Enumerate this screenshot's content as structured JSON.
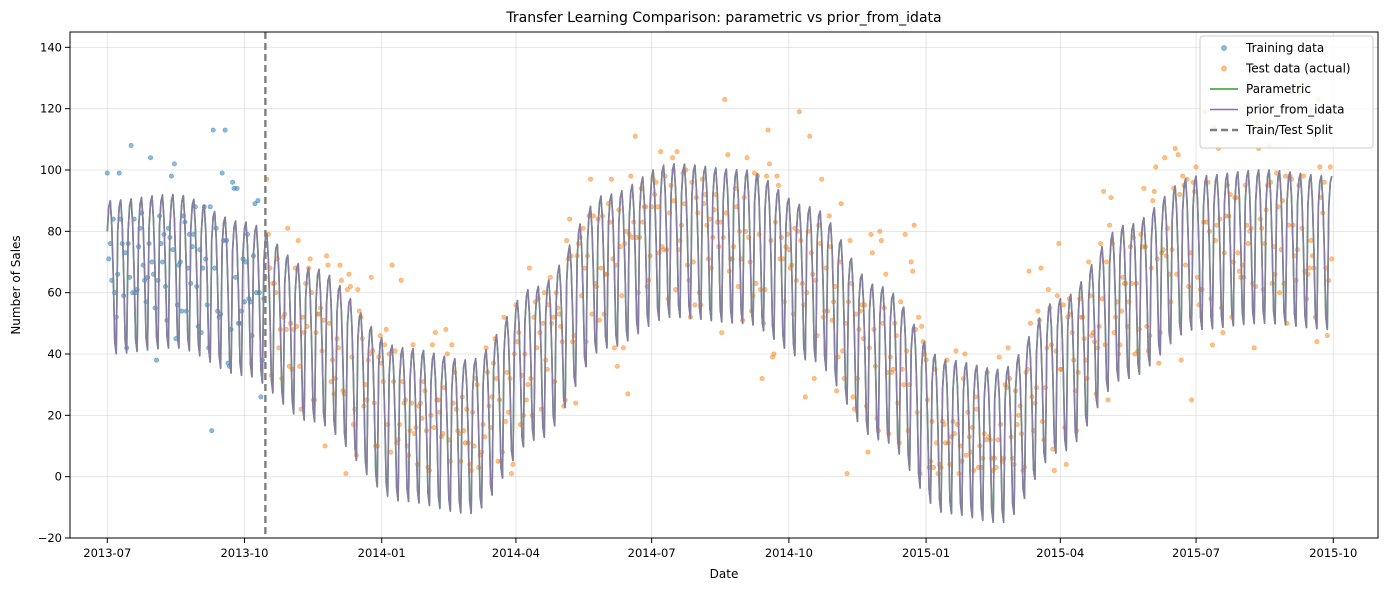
{
  "chart_data": {
    "type": "line",
    "title": "Transfer Learning Comparison: parametric vs prior_from_idata",
    "xlabel": "Date",
    "ylabel": "Number of Sales",
    "xlim": [
      "2013-06-06",
      "2015-10-31"
    ],
    "ylim": [
      -20,
      145
    ],
    "x_ticks": [
      "2013-07",
      "2013-10",
      "2014-01",
      "2014-04",
      "2014-07",
      "2014-10",
      "2015-01",
      "2015-04",
      "2015-07",
      "2015-10"
    ],
    "x_tick_dates": [
      "2013-07-01",
      "2013-10-01",
      "2014-01-01",
      "2014-04-01",
      "2014-07-01",
      "2014-10-01",
      "2015-01-01",
      "2015-04-01",
      "2015-07-01",
      "2015-10-01"
    ],
    "y_ticks": [
      -20,
      0,
      20,
      40,
      60,
      80,
      100,
      120,
      140
    ],
    "grid": true,
    "legend_position": "top-right",
    "split_date": "2013-10-15",
    "date_range": [
      "2013-07-01",
      "2015-09-30"
    ],
    "series": [
      {
        "name": "Training data",
        "kind": "scatter",
        "color": "#1f77b4"
      },
      {
        "name": "Test data (actual)",
        "kind": "scatter",
        "color": "#ff7f0e"
      },
      {
        "name": "Parametric",
        "kind": "line",
        "color": "#2ca02c"
      },
      {
        "name": "prior_from_idata",
        "kind": "line",
        "color": "#9467bd"
      },
      {
        "name": "Train/Test Split",
        "kind": "vline",
        "color": "#7f7f7f"
      }
    ],
    "trend_knots": {
      "x": [
        "2013-07-01",
        "2013-08-15",
        "2013-10-01",
        "2013-11-15",
        "2014-01-15",
        "2014-03-01",
        "2014-04-15",
        "2014-06-01",
        "2014-07-15",
        "2014-09-01",
        "2014-10-15",
        "2014-12-01",
        "2015-01-15",
        "2015-02-20",
        "2015-04-01",
        "2015-05-15",
        "2015-07-01",
        "2015-08-15",
        "2015-09-30"
      ],
      "y": [
        70,
        72,
        63,
        48,
        22,
        18,
        42,
        72,
        82,
        80,
        68,
        42,
        18,
        15,
        38,
        62,
        78,
        80,
        78
      ]
    },
    "weekly_profile": [
      10,
      18,
      20,
      12,
      -4,
      -26,
      -30
    ],
    "noise_sd": 15
  }
}
